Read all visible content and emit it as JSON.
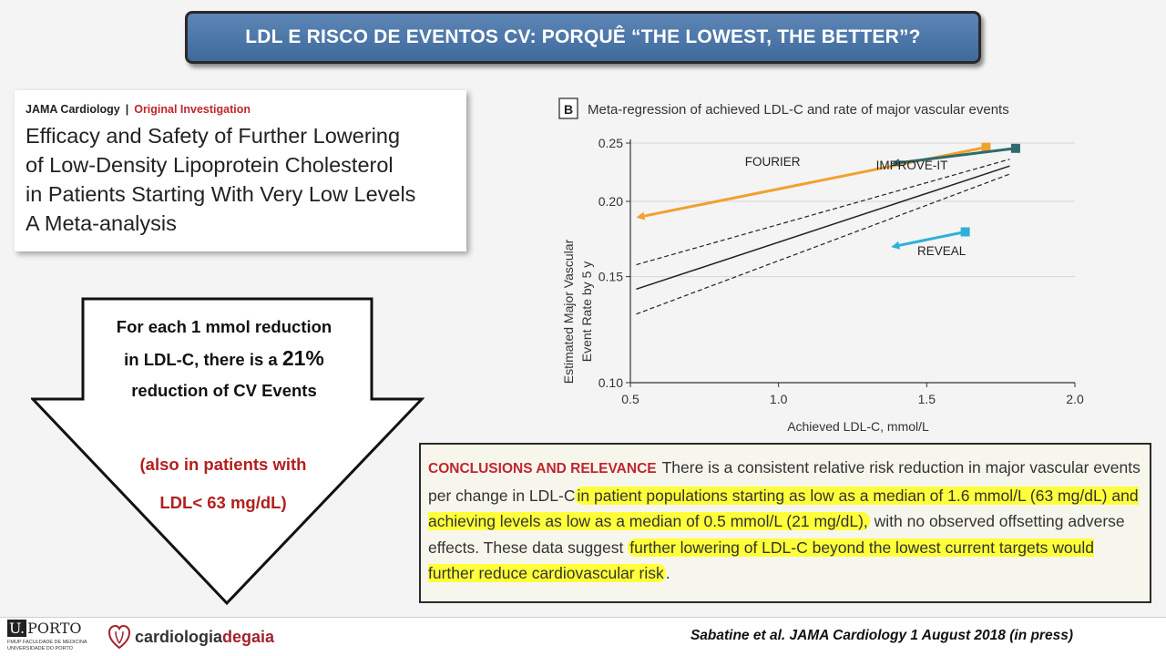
{
  "slide_title": "LDL E RISCO DE EVENTOS CV: PORQUÊ “THE LOWEST, THE BETTER”?",
  "paper": {
    "journal": "JAMA Cardiology",
    "separator": "|",
    "article_type": "Original Investigation",
    "title_lines": [
      "Efficacy and Safety of Further Lowering",
      "of Low-Density Lipoprotein Cholesterol",
      "in Patients Starting With Very Low Levels",
      "A Meta-analysis"
    ]
  },
  "arrow": {
    "line1": "For each 1 mmol reduction",
    "line2a": "in LDL-C, there is a ",
    "line2b": "21%",
    "line3": "reduction of CV Events",
    "note1": "(also in patients with",
    "note2": "LDL< 63 mg/dL)"
  },
  "chart_data": {
    "type": "line",
    "panel_label": "B",
    "title": "Meta-regression of achieved LDL-C and rate of major vascular events",
    "xlabel": "Achieved LDL-C, mmol/L",
    "ylabel_lines": [
      "Estimated Major Vascular",
      "Event Rate by 5 y"
    ],
    "xlim": [
      0.5,
      2.0
    ],
    "ylim": [
      0.1,
      0.25
    ],
    "y_scale": "log",
    "x_ticks": [
      "0.5",
      "1.0",
      "1.5",
      "2.0"
    ],
    "x_tick_values": [
      0.5,
      1.0,
      1.5,
      2.0
    ],
    "y_ticks": [
      "0.25",
      "0.20",
      "0.15",
      "0.10"
    ],
    "y_tick_values": [
      0.25,
      0.2,
      0.15,
      0.1
    ],
    "grid": true,
    "regression": {
      "fit": [
        [
          0.52,
          0.143
        ],
        [
          1.78,
          0.229
        ]
      ],
      "ci_upper": [
        [
          0.52,
          0.157
        ],
        [
          1.78,
          0.235
        ]
      ],
      "ci_lower": [
        [
          0.52,
          0.13
        ],
        [
          1.78,
          0.222
        ]
      ]
    },
    "trials": [
      {
        "name": "FOURIER",
        "color": "#f2a02e",
        "start": [
          1.7,
          0.246
        ],
        "end": [
          0.52,
          0.188
        ],
        "label_at": [
          0.98,
          0.229
        ]
      },
      {
        "name": "IMPROVE-IT",
        "color": "#2f6b6e",
        "start": [
          1.8,
          0.245
        ],
        "end": [
          1.38,
          0.231
        ],
        "label_at": [
          1.45,
          0.226
        ]
      },
      {
        "name": "REVEAL",
        "color": "#2eb0d8",
        "start": [
          1.63,
          0.178
        ],
        "end": [
          1.38,
          0.168
        ],
        "label_at": [
          1.55,
          0.163
        ]
      }
    ]
  },
  "conclusions": {
    "label": "CONCLUSIONS AND RELEVANCE",
    "t1": "There is a consistent relative risk reduction in major vascular events per change in LDL-C",
    "h1": "in patient populations starting as low as a median of 1.6 mmol/L (63 mg/dL) and achieving levels as low as a median of 0.5 mmol/L (21 mg/dL),",
    "t2": " with no observed offsetting adverse effects. These data suggest ",
    "h2": "further lowering of LDL-C beyond the lowest current targets would further reduce cardiovascular risk",
    "t3": "."
  },
  "footer": {
    "up_name": "PORTO",
    "up_letter": "U.",
    "up_sub1": "FMUP  FACULDADE DE MEDICINA",
    "up_sub2": "UNIVERSIDADE DO PORTO",
    "cg_part1": "cardiologia",
    "cg_part2": "degaia",
    "citation": "Sabatine et al. JAMA Cardiology 1 August 2018 (in press)"
  }
}
